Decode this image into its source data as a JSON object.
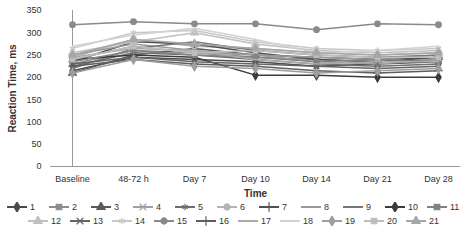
{
  "chart_data": {
    "type": "line",
    "x_label": "Time",
    "y_label": "Reaction Time, ms",
    "categories": [
      "Baseline",
      "48-72 h",
      "Day 7",
      "Day 10",
      "Day 14",
      "Day 21",
      "Day 28"
    ],
    "ylim": [
      0,
      350
    ],
    "yticks": [
      0,
      50,
      100,
      150,
      200,
      250,
      300,
      350
    ],
    "grid": false,
    "legend": "bottom",
    "series": [
      {
        "name": "1",
        "color": "#4a4a4a",
        "marker": "diamond",
        "values": [
          215,
          245,
          240,
          235,
          225,
          230,
          235
        ]
      },
      {
        "name": "2",
        "color": "#8c8c8c",
        "marker": "square",
        "values": [
          230,
          260,
          255,
          245,
          240,
          235,
          240
        ]
      },
      {
        "name": "3",
        "color": "#5a5a5a",
        "marker": "triangle",
        "values": [
          210,
          250,
          265,
          250,
          245,
          240,
          245
        ]
      },
      {
        "name": "4",
        "color": "#a0a0a0",
        "marker": "x",
        "values": [
          240,
          270,
          255,
          250,
          235,
          230,
          240
        ]
      },
      {
        "name": "5",
        "color": "#6e6e6e",
        "marker": "asterisk",
        "values": [
          225,
          255,
          250,
          240,
          230,
          225,
          230
        ]
      },
      {
        "name": "6",
        "color": "#b4b4b4",
        "marker": "circle",
        "values": [
          245,
          285,
          270,
          265,
          255,
          250,
          255
        ]
      },
      {
        "name": "7",
        "color": "#505050",
        "marker": "plus",
        "values": [
          235,
          280,
          275,
          255,
          240,
          235,
          245
        ]
      },
      {
        "name": "8",
        "color": "#9a9a9a",
        "marker": "none",
        "values": [
          250,
          275,
          260,
          250,
          245,
          240,
          250
        ]
      },
      {
        "name": "9",
        "color": "#787878",
        "marker": "none",
        "values": [
          220,
          265,
          280,
          260,
          250,
          245,
          250
        ]
      },
      {
        "name": "10",
        "color": "#3c3c3c",
        "marker": "diamond",
        "values": [
          240,
          250,
          245,
          205,
          205,
          200,
          200
        ]
      },
      {
        "name": "11",
        "color": "#828282",
        "marker": "square",
        "values": [
          235,
          260,
          250,
          245,
          235,
          240,
          235
        ]
      },
      {
        "name": "12",
        "color": "#c0c0c0",
        "marker": "triangle",
        "values": [
          255,
          280,
          300,
          275,
          260,
          255,
          260
        ]
      },
      {
        "name": "13",
        "color": "#646464",
        "marker": "x",
        "values": [
          230,
          245,
          235,
          230,
          225,
          220,
          225
        ]
      },
      {
        "name": "14",
        "color": "#c8c8c8",
        "marker": "asterisk",
        "values": [
          265,
          300,
          305,
          280,
          265,
          260,
          265
        ]
      },
      {
        "name": "15",
        "color": "#8a8a8a",
        "marker": "circle",
        "values": [
          318,
          325,
          320,
          320,
          307,
          320,
          318
        ]
      },
      {
        "name": "16",
        "color": "#5e5e5e",
        "marker": "plus",
        "values": [
          225,
          240,
          230,
          225,
          215,
          210,
          215
        ]
      },
      {
        "name": "17",
        "color": "#aaaaaa",
        "marker": "none",
        "values": [
          245,
          265,
          260,
          240,
          230,
          235,
          235
        ]
      },
      {
        "name": "18",
        "color": "#d2d2d2",
        "marker": "none",
        "values": [
          270,
          295,
          310,
          285,
          255,
          260,
          270
        ]
      },
      {
        "name": "19",
        "color": "#9e9e9e",
        "marker": "diamond",
        "values": [
          210,
          240,
          225,
          220,
          210,
          215,
          220
        ]
      },
      {
        "name": "20",
        "color": "#bdbdbd",
        "marker": "square",
        "values": [
          240,
          270,
          255,
          260,
          250,
          245,
          245
        ]
      },
      {
        "name": "21",
        "color": "#a6a6a6",
        "marker": "triangle",
        "values": [
          250,
          285,
          275,
          265,
          255,
          250,
          255
        ]
      }
    ]
  }
}
